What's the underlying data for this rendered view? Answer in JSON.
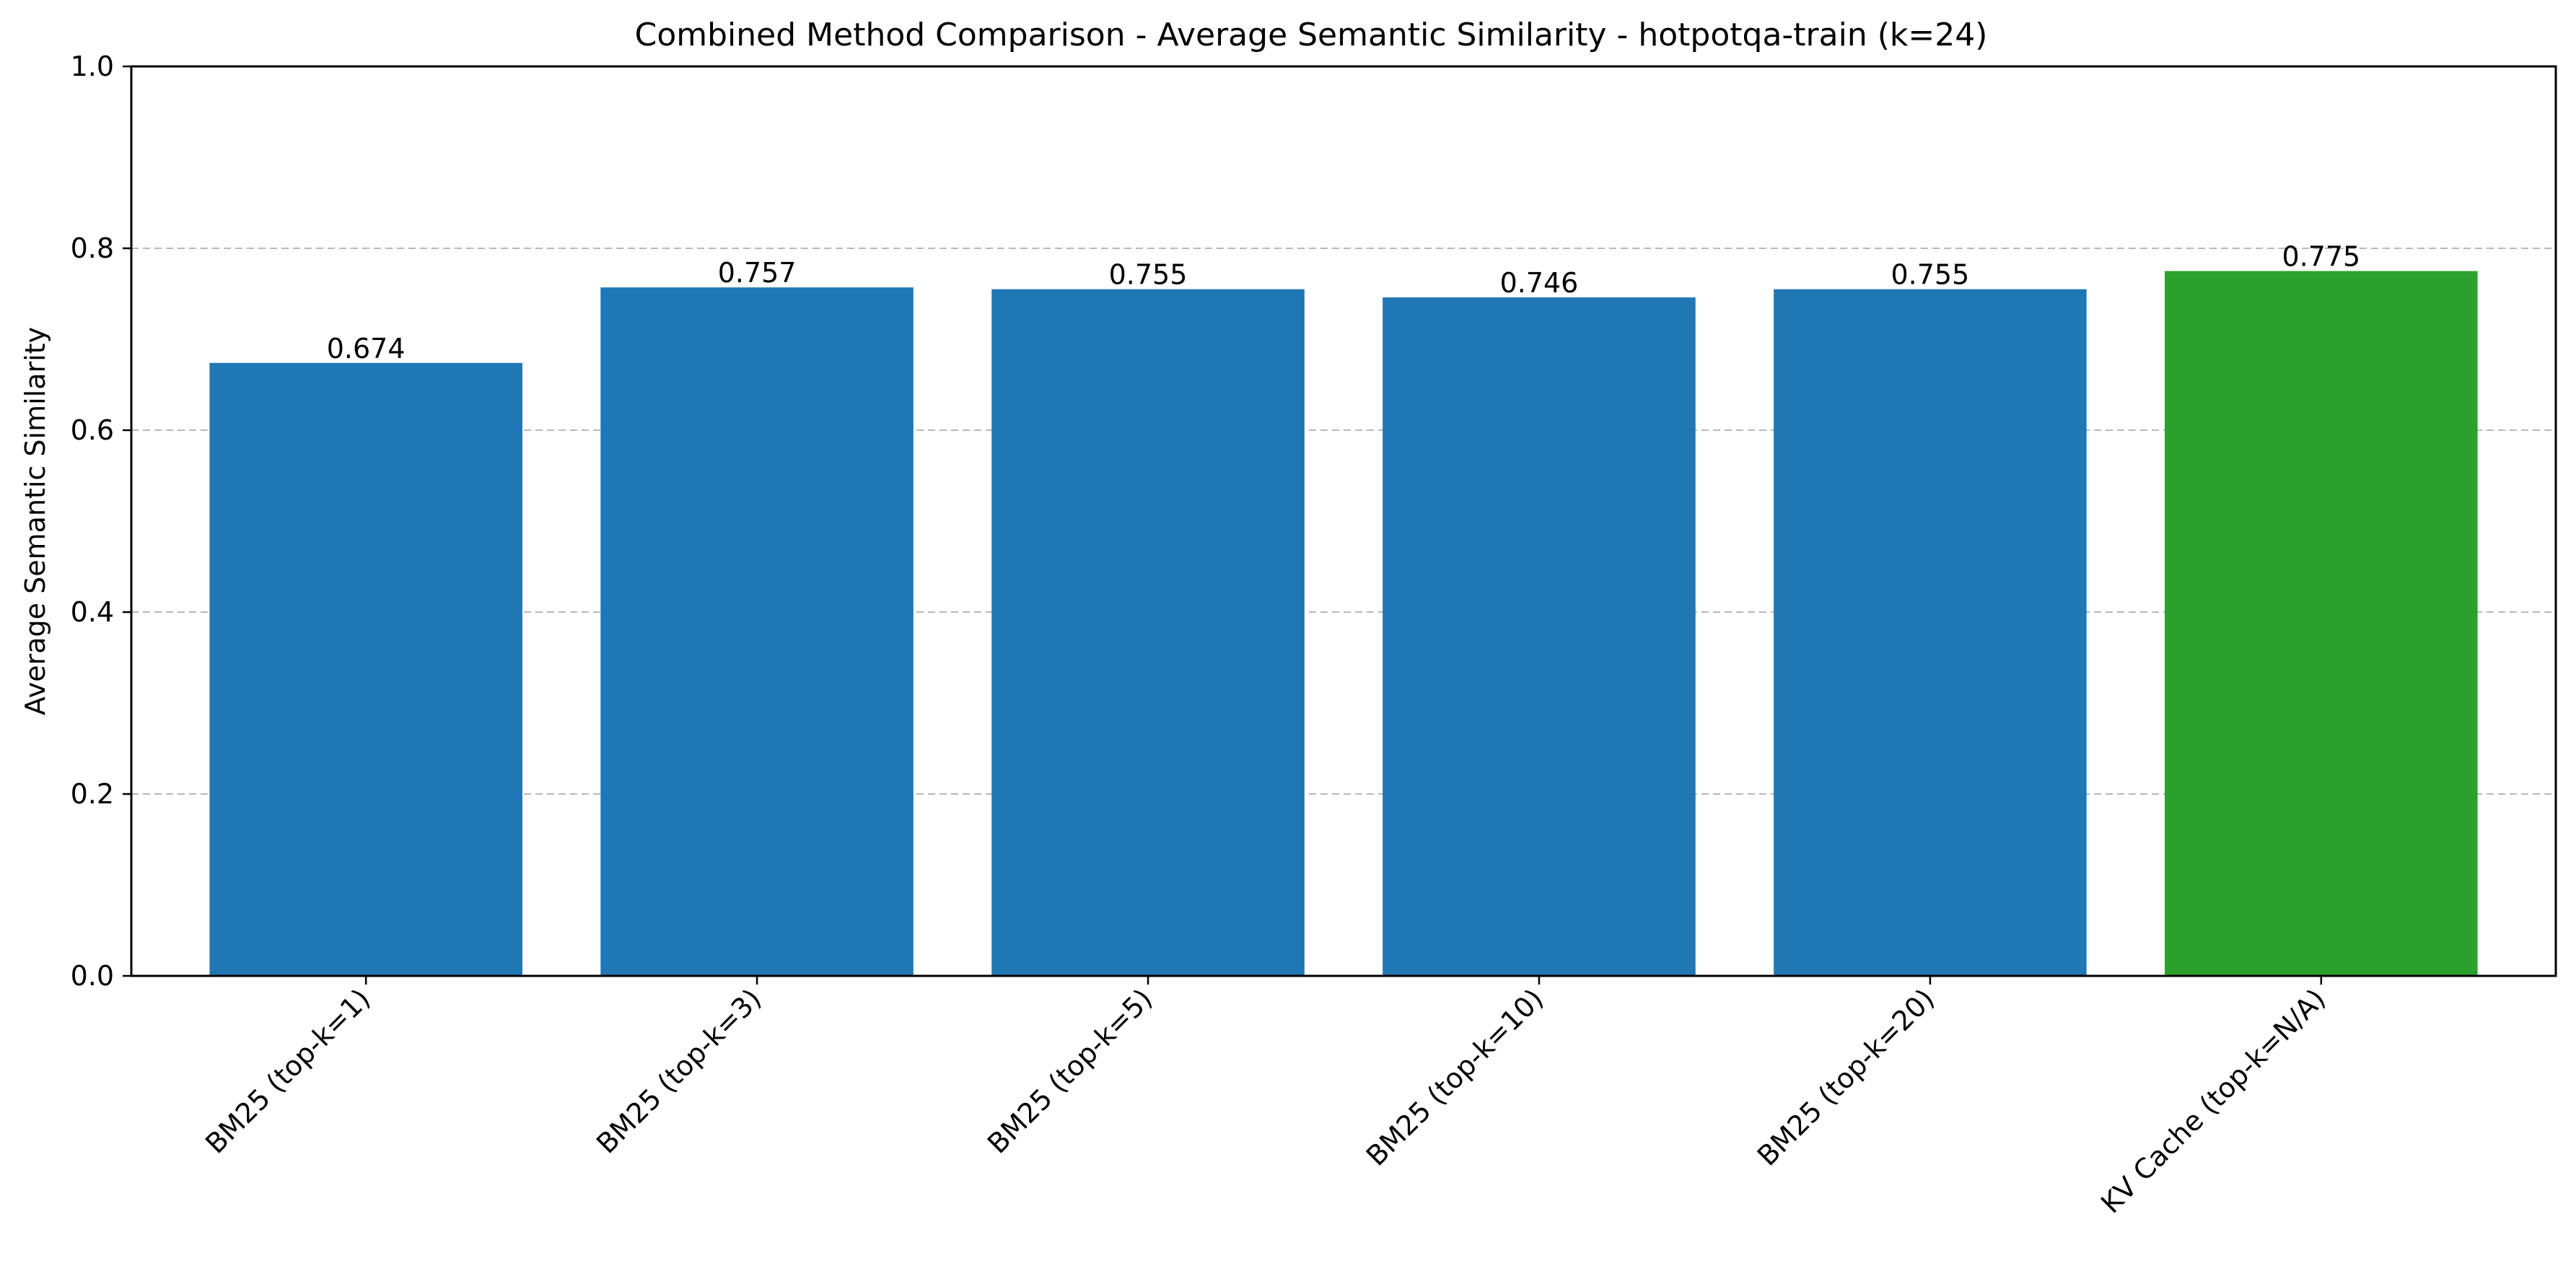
{
  "chart_data": {
    "type": "bar",
    "title": "Combined Method Comparison - Average Semantic Similarity - hotpotqa-train (k=24)",
    "xlabel": "",
    "ylabel": "Average Semantic Similarity",
    "categories": [
      "BM25 (top-k=1)",
      "BM25 (top-k=3)",
      "BM25 (top-k=5)",
      "BM25 (top-k=10)",
      "BM25 (top-k=20)",
      "KV Cache (top-k=N/A)"
    ],
    "values": [
      0.674,
      0.757,
      0.755,
      0.746,
      0.755,
      0.775
    ],
    "value_labels": [
      "0.674",
      "0.757",
      "0.755",
      "0.746",
      "0.755",
      "0.775"
    ],
    "bar_colors": [
      "#1f77b4",
      "#1f77b4",
      "#1f77b4",
      "#1f77b4",
      "#1f77b4",
      "#2ca02c"
    ],
    "ylim": [
      0,
      1.0
    ],
    "yticks": [
      0.0,
      0.2,
      0.4,
      0.6,
      0.8,
      1.0
    ],
    "ytick_labels": [
      "0.0",
      "0.2",
      "0.4",
      "0.6",
      "0.8",
      "1.0"
    ],
    "grid": "y-dashed",
    "legend": "none"
  }
}
